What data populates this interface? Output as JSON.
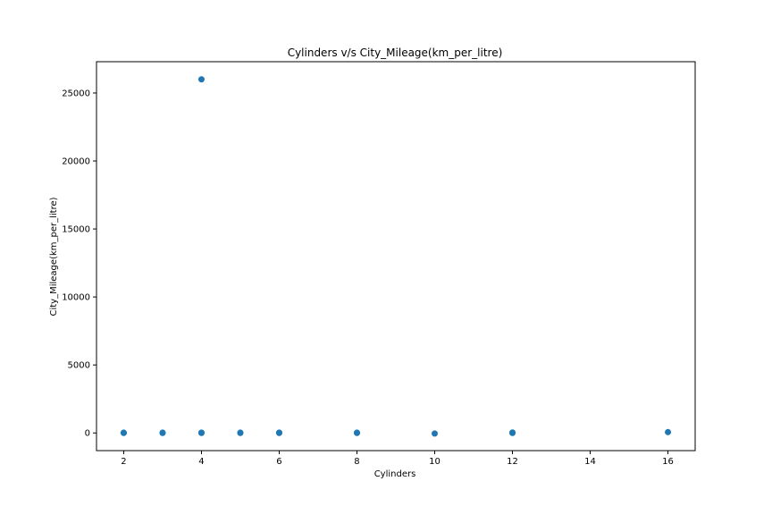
{
  "chart_data": {
    "type": "scatter",
    "title": "Cylinders v/s City_Mileage(km_per_litre)",
    "xlabel": "Cylinders",
    "ylabel": "City_Mileage(km_per_litre)",
    "xlim": [
      1.3,
      16.7
    ],
    "ylim": [
      -1300,
      27300
    ],
    "xticks": [
      2,
      4,
      6,
      8,
      10,
      12,
      14,
      16
    ],
    "yticks": [
      0,
      5000,
      10000,
      15000,
      20000,
      25000
    ],
    "grid": false,
    "marker_color": "#1f77b4",
    "points": [
      {
        "x": 2,
        "y": 0
      },
      {
        "x": 2,
        "y": 20
      },
      {
        "x": 3,
        "y": 0
      },
      {
        "x": 3,
        "y": 20
      },
      {
        "x": 4,
        "y": 26000
      },
      {
        "x": 4,
        "y": 0
      },
      {
        "x": 4,
        "y": 25
      },
      {
        "x": 5,
        "y": 0
      },
      {
        "x": 5,
        "y": 20
      },
      {
        "x": 6,
        "y": 0
      },
      {
        "x": 6,
        "y": 25
      },
      {
        "x": 8,
        "y": 0
      },
      {
        "x": 8,
        "y": 20
      },
      {
        "x": 10,
        "y": -40
      },
      {
        "x": 12,
        "y": 0
      },
      {
        "x": 12,
        "y": 30
      },
      {
        "x": 16,
        "y": 60
      }
    ]
  }
}
